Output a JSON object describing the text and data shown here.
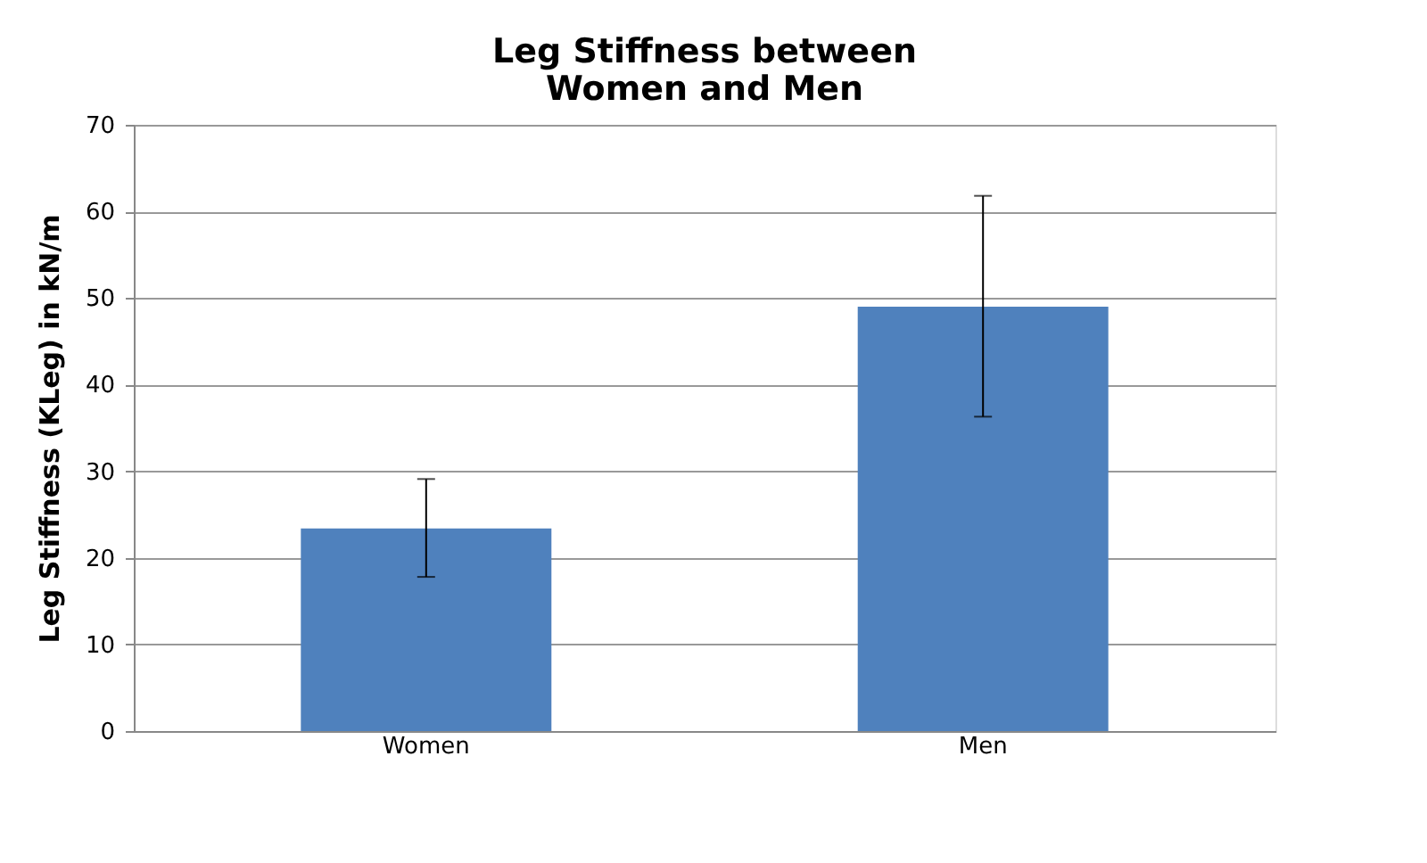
{
  "chart_data": {
    "type": "bar",
    "title": [
      "Leg Stiffness between",
      "Women and Men"
    ],
    "ylabel": "Leg Stiffness (KLeg) in kN/m",
    "categories": [
      "Women",
      "Men"
    ],
    "values": [
      23.4,
      49.0
    ],
    "errors": [
      [
        17.8,
        29.1
      ],
      [
        36.3,
        61.8
      ]
    ],
    "color": "#4f81bd",
    "ylim": [
      0,
      70
    ],
    "yticks": [
      0,
      10,
      20,
      30,
      40,
      50,
      60,
      70
    ],
    "grid": "y"
  }
}
